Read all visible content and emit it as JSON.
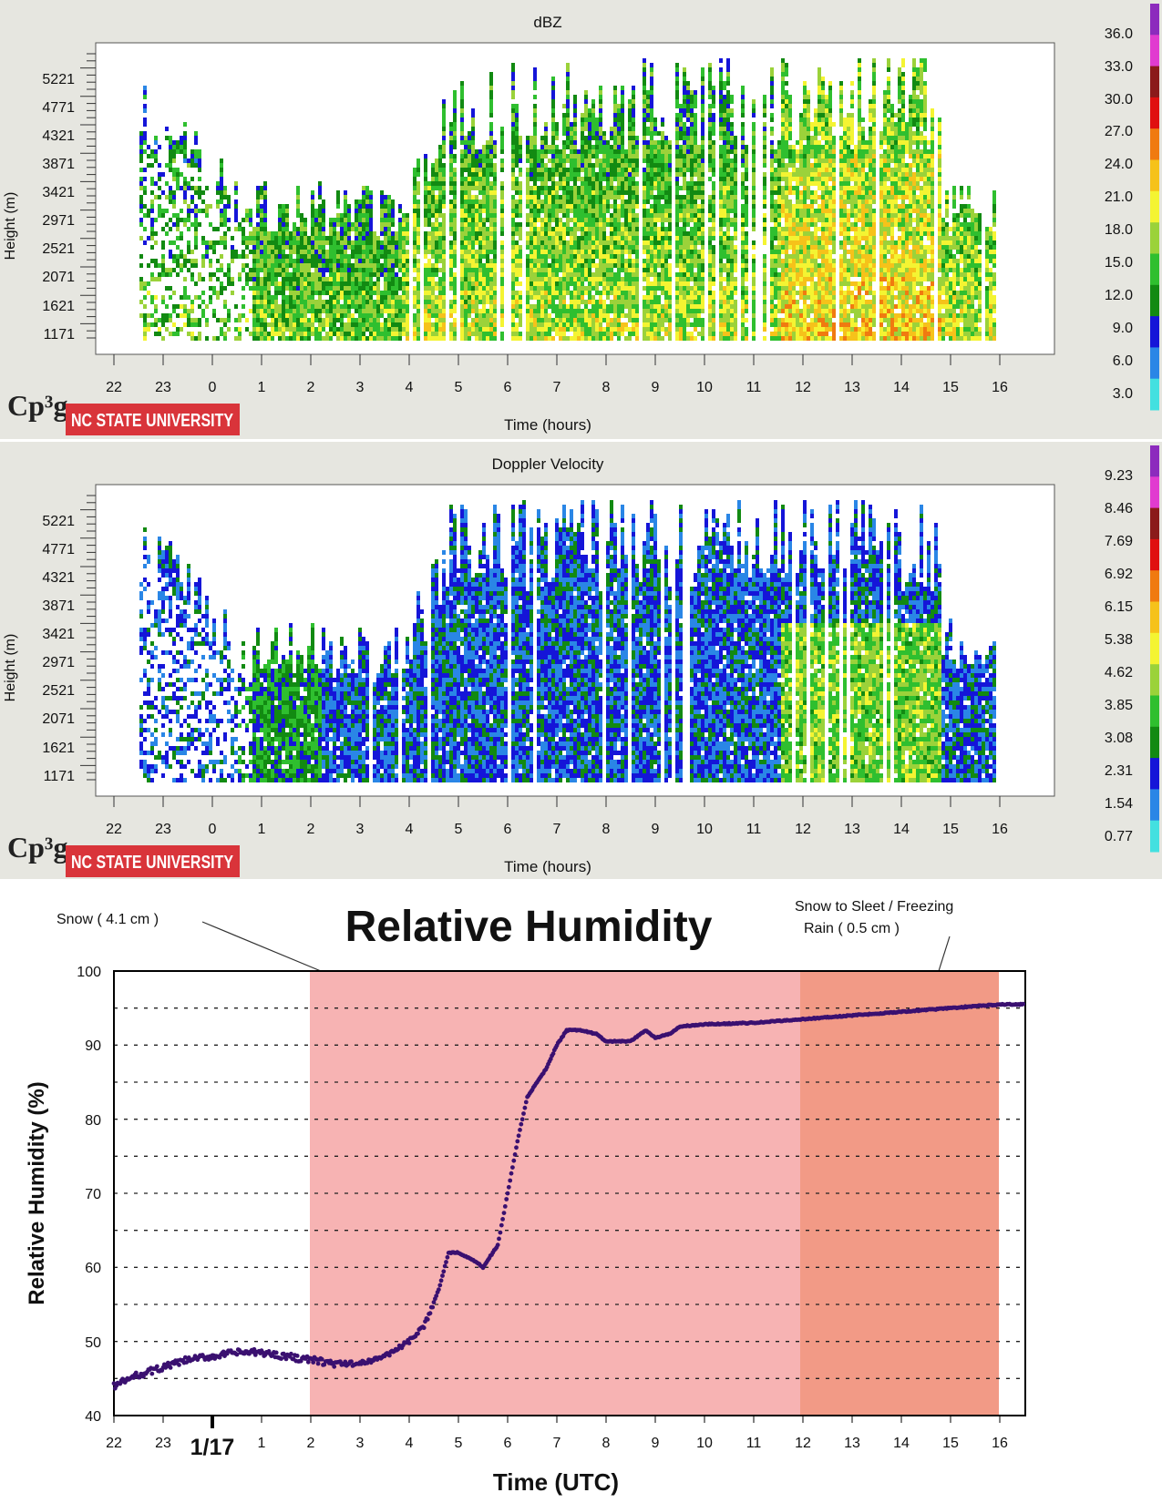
{
  "chart_data": [
    {
      "type": "heatmap",
      "title": "dBZ",
      "xlabel": "Time (hours)",
      "ylabel": "Height (m)",
      "x_ticks": [
        "22",
        "23",
        "0",
        "1",
        "2",
        "3",
        "4",
        "5",
        "6",
        "7",
        "8",
        "9",
        "10",
        "11",
        "12",
        "13",
        "14",
        "15",
        "16"
      ],
      "y_ticks": [
        "5221",
        "4771",
        "4321",
        "3871",
        "3421",
        "2971",
        "2521",
        "2071",
        "1621",
        "1171"
      ],
      "colorbar": {
        "labels": [
          "36.0",
          "33.0",
          "30.0",
          "27.0",
          "24.0",
          "21.0",
          "18.0",
          "15.0",
          "12.0",
          "9.0",
          "6.0",
          "3.0"
        ],
        "colors": [
          "#8c2bbd",
          "#e13bd0",
          "#8b1a1a",
          "#e01010",
          "#f07a10",
          "#f6c21a",
          "#f4f432",
          "#9bd23a",
          "#2fbf2f",
          "#128a12",
          "#1515d8",
          "#2a86e6",
          "#43e0e0"
        ]
      },
      "logo_text": "Cp³g",
      "brand_text": "NC STATE UNIVERSITY"
    },
    {
      "type": "heatmap",
      "title": "Doppler Velocity",
      "xlabel": "Time (hours)",
      "ylabel": "Height (m)",
      "x_ticks": [
        "22",
        "23",
        "0",
        "1",
        "2",
        "3",
        "4",
        "5",
        "6",
        "7",
        "8",
        "9",
        "10",
        "11",
        "12",
        "13",
        "14",
        "15",
        "16"
      ],
      "y_ticks": [
        "5221",
        "4771",
        "4321",
        "3871",
        "3421",
        "2971",
        "2521",
        "2071",
        "1621",
        "1171"
      ],
      "colorbar": {
        "labels": [
          "9.23",
          "8.46",
          "7.69",
          "6.92",
          "6.15",
          "5.38",
          "4.62",
          "3.85",
          "3.08",
          "2.31",
          "1.54",
          "0.77"
        ],
        "colors": [
          "#8c2bbd",
          "#e13bd0",
          "#8b1a1a",
          "#e01010",
          "#f07a10",
          "#f6c21a",
          "#f4f432",
          "#9bd23a",
          "#2fbf2f",
          "#128a12",
          "#1515d8",
          "#2a86e6",
          "#43e0e0"
        ]
      },
      "logo_text": "Cp³g",
      "brand_text": "NC STATE UNIVERSITY"
    },
    {
      "type": "scatter",
      "title": "Relative Humidity",
      "xlabel": "Time (UTC)",
      "ylabel": "Relative Humidity (%)",
      "x_ticks": [
        "22",
        "23",
        "1/17",
        "1",
        "2",
        "3",
        "4",
        "5",
        "6",
        "7",
        "8",
        "9",
        "10",
        "11",
        "12",
        "13",
        "14",
        "15",
        "16"
      ],
      "ylim": [
        40,
        100
      ],
      "y_ticks": [
        40,
        50,
        60,
        70,
        80,
        90,
        100
      ],
      "annotations": [
        {
          "text": "Snow ( 4.1 cm )",
          "span": [
            "2",
            "12"
          ],
          "color": "#f7b3b3"
        },
        {
          "text": "Snow to Sleet / Freezing",
          "text2": "Rain ( 0.5 cm )",
          "span": [
            "12",
            "16"
          ],
          "color": "#f29a86"
        }
      ],
      "series": [
        {
          "color": "#3a1070",
          "x": [
            22.0,
            22.5,
            23.0,
            23.5,
            24.0,
            24.5,
            25.0,
            25.5,
            26.0,
            26.5,
            27.0,
            27.5,
            28.0,
            28.3,
            28.6,
            28.8,
            29.0,
            29.3,
            29.5,
            29.8,
            30.0,
            30.2,
            30.4,
            30.6,
            30.8,
            31.0,
            31.2,
            31.5,
            31.8,
            32.0,
            32.5,
            32.8,
            33.0,
            33.3,
            33.5,
            34.0,
            35.0,
            36.0,
            37.0,
            38.0,
            39.0,
            40.0,
            40.5
          ],
          "y": [
            44.0,
            45.5,
            46.5,
            47.5,
            48.0,
            48.5,
            48.5,
            48.0,
            47.5,
            47.0,
            47.0,
            48.0,
            50.0,
            52.0,
            57.0,
            62.0,
            62.0,
            61.0,
            60.0,
            63.0,
            70.0,
            77.0,
            83.0,
            85.0,
            87.0,
            90.0,
            92.0,
            92.0,
            91.5,
            90.5,
            90.5,
            92.0,
            91.0,
            91.5,
            92.5,
            92.8,
            93.0,
            93.5,
            94.0,
            94.5,
            95.0,
            95.5,
            95.5
          ]
        }
      ]
    }
  ]
}
